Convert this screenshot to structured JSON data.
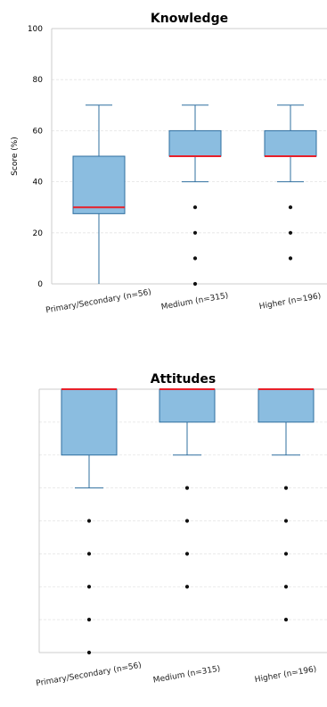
{
  "colors": {
    "box_fill": "#8bbde0",
    "box_stroke": "#2f6f9f",
    "median": "#e8202a",
    "grid": "#e3e3e3",
    "axis": "#cccccc"
  },
  "chart_data": [
    {
      "type": "box",
      "title": "Knowledge",
      "ylabel": "Score (%)",
      "ylim": [
        0,
        100
      ],
      "yticks": [
        0,
        20,
        40,
        60,
        80,
        100
      ],
      "grid": true,
      "categories": [
        "Primary/Secondary (n=56)",
        "Medium (n=315)",
        "Higher (n=196)"
      ],
      "boxes": [
        {
          "whisker_low": 0,
          "q1": 27.5,
          "median": 30,
          "q3": 50,
          "whisker_high": 70,
          "outliers": []
        },
        {
          "whisker_low": 40,
          "q1": 50,
          "median": 50,
          "q3": 60,
          "whisker_high": 70,
          "outliers": [
            0,
            10,
            20,
            30
          ]
        },
        {
          "whisker_low": 40,
          "q1": 50,
          "median": 50,
          "q3": 60,
          "whisker_high": 70,
          "outliers": [
            10,
            20,
            30
          ]
        }
      ]
    },
    {
      "type": "box",
      "title": "Attitudes",
      "ylabel": "",
      "ylim": [
        0,
        100
      ],
      "yticks": [],
      "grid": true,
      "categories": [
        "Primary/Secondary (n=56)",
        "Medium (n=315)",
        "Higher (n=196)"
      ],
      "boxes": [
        {
          "whisker_low": 62.5,
          "q1": 75,
          "median": 100,
          "q3": 100,
          "whisker_high": 100,
          "outliers": [
            0,
            12.5,
            25,
            37.5,
            50
          ]
        },
        {
          "whisker_low": 75,
          "q1": 87.5,
          "median": 100,
          "q3": 100,
          "whisker_high": 100,
          "outliers": [
            25,
            37.5,
            50,
            62.5
          ]
        },
        {
          "whisker_low": 75,
          "q1": 87.5,
          "median": 100,
          "q3": 100,
          "whisker_high": 100,
          "outliers": [
            12.5,
            25,
            37.5,
            50,
            62.5
          ]
        }
      ]
    }
  ]
}
